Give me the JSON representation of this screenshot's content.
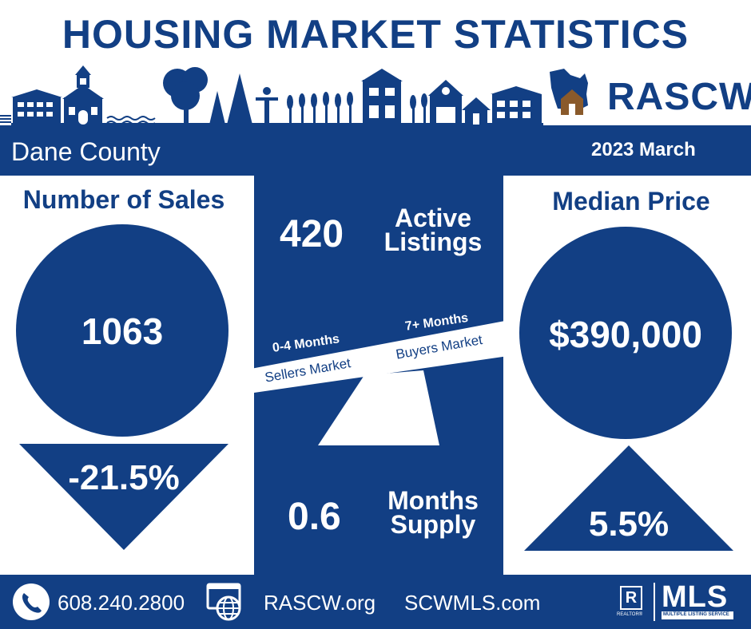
{
  "title": "HOUSING MARKET STATISTICS",
  "brand": {
    "logo_text": "RASCW"
  },
  "region": "Dane County",
  "period": "2023 March",
  "sales": {
    "heading": "Number of Sales",
    "value": "1063",
    "change": "-21.5%",
    "direction": "down"
  },
  "price": {
    "heading": "Median Price",
    "value": "$390,000",
    "change": "5.5%",
    "direction": "up"
  },
  "listings": {
    "value": "420",
    "label_line1": "Active",
    "label_line2": "Listings"
  },
  "scale": {
    "left_range": "0-4 Months",
    "left_label": "Sellers Market",
    "right_range": "7+ Months",
    "right_label": "Buyers Market"
  },
  "supply": {
    "value": "0.6",
    "label_line1": "Months",
    "label_line2": "Supply"
  },
  "footer": {
    "phone": "608.240.2800",
    "site1": "RASCW.org",
    "site2": "SCWMLS.com",
    "mls_text": "MLS",
    "mls_sub": "MULTIPLE LISTING SERVICE",
    "realtor_text": "REALTOR®",
    "realtor_letter": "R"
  },
  "colors": {
    "navy": "#123f84",
    "brown": "#8a5a2b",
    "white": "#ffffff"
  },
  "icons": [
    "phone-icon",
    "web-globe-icon",
    "realtor-icon",
    "wisconsin-house-icon"
  ]
}
